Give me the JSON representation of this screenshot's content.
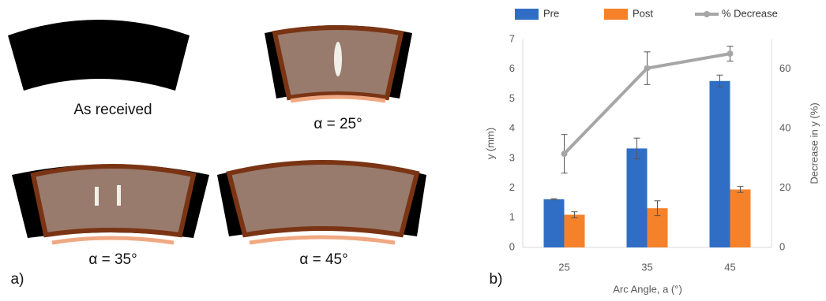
{
  "panel_a": {
    "label": "a)",
    "captions": [
      "As received",
      "α = 25°",
      "α = 35°",
      "α = 45°"
    ]
  },
  "chart_data": {
    "type": "bar",
    "panel_label": "b)",
    "x_label": "Arc Angle, a (°)",
    "y_label": "y (mm)",
    "y2_label": "Decrease in y (%)",
    "categories": [
      "25",
      "35",
      "45"
    ],
    "series": [
      {
        "name": "Pre",
        "color": "#2f6ec4",
        "values": [
          1.62,
          3.33,
          5.6
        ],
        "errors": [
          0.02,
          0.35,
          0.2
        ]
      },
      {
        "name": "Post",
        "color": "#f5822a",
        "values": [
          1.1,
          1.32,
          1.95
        ],
        "errors": [
          0.1,
          0.25,
          0.1
        ]
      },
      {
        "name": "% Decrease",
        "color": "#a6a6a6",
        "axis": "y2",
        "type": "line",
        "values": [
          31.5,
          60.3,
          65.2
        ],
        "errors": [
          6.5,
          5.5,
          2.5
        ]
      }
    ],
    "ylim": [
      0,
      7
    ],
    "yticks": [
      0,
      1,
      2,
      3,
      4,
      5,
      6,
      7
    ],
    "y2lim": [
      0,
      70
    ],
    "y2ticks": [
      0,
      20,
      40,
      60
    ],
    "grid": false,
    "legend": "top"
  }
}
